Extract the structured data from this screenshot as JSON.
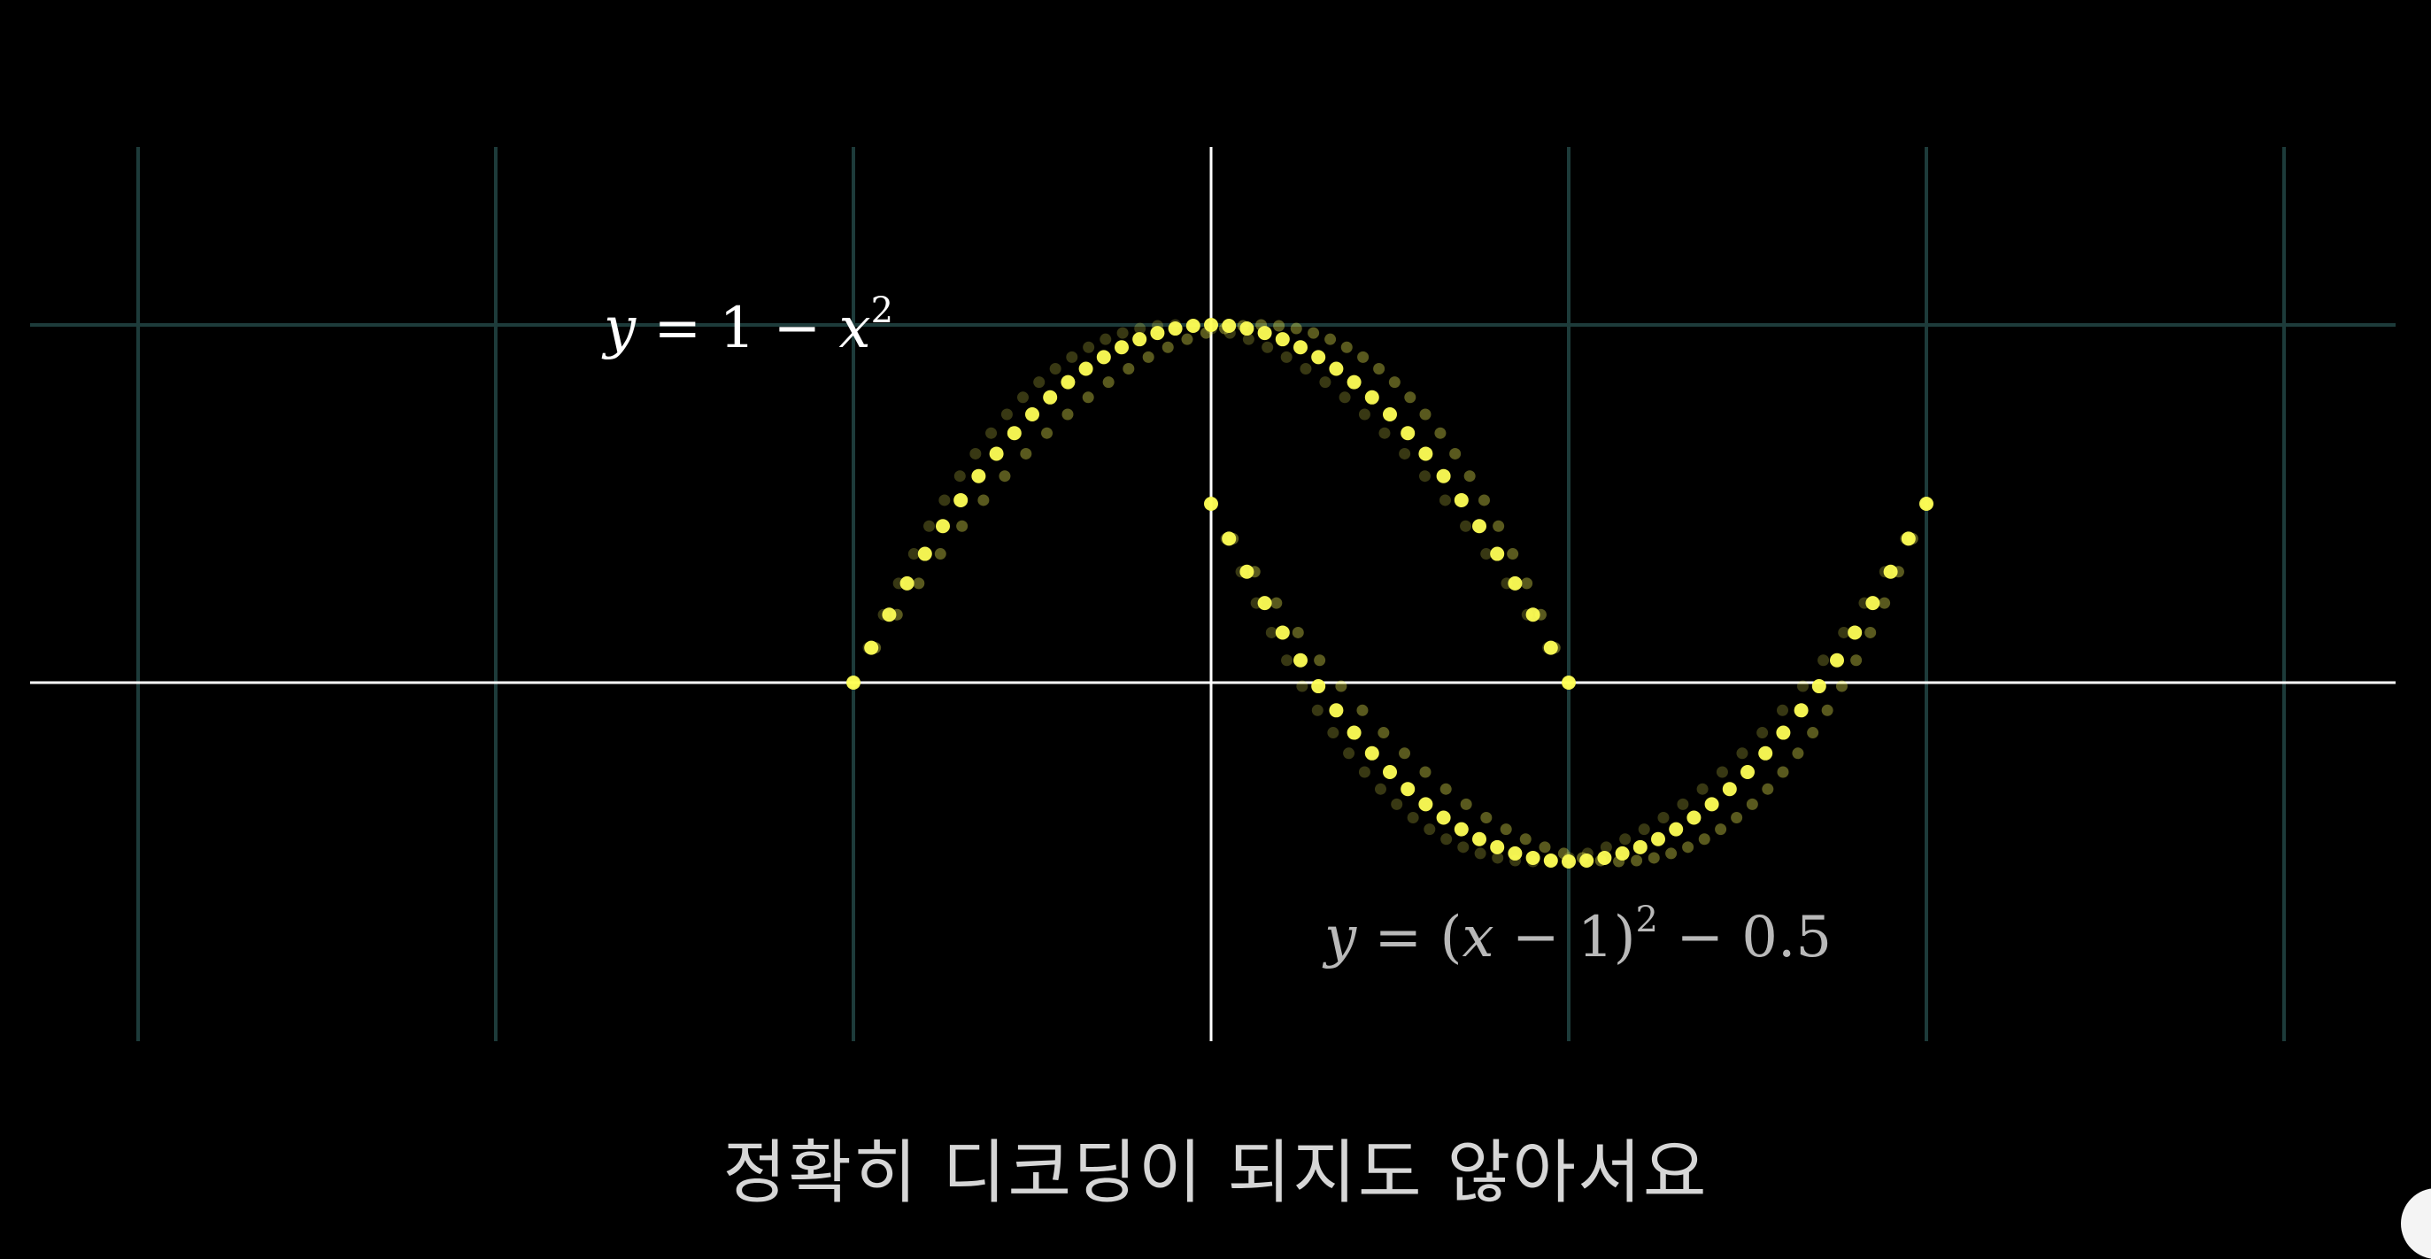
{
  "diagram": {
    "x_range": [
      -3.0,
      3.3
    ],
    "y_range": [
      -1.0,
      1.5
    ],
    "grid_x_lines": [
      -3,
      -2,
      -1,
      0,
      1,
      2,
      3
    ],
    "grid_y_lines": [
      1
    ],
    "curve_color": "#ffff55",
    "grid_color": "#1d3b3a",
    "axis_color": "#ffffff",
    "curves": [
      {
        "equation_parts": [
          "y",
          " = 1 − ",
          "x",
          "2"
        ],
        "function": "1 - x^2",
        "domain": [
          -1,
          1
        ]
      },
      {
        "equation_parts": [
          "y",
          " = (",
          "x",
          " − 1)",
          "2",
          " − 0.5"
        ],
        "function": "(x - 1)^2 - 0.5",
        "domain": [
          0,
          2
        ]
      }
    ]
  },
  "subtitle": "정확히 디코딩이 되지도 않아서요"
}
